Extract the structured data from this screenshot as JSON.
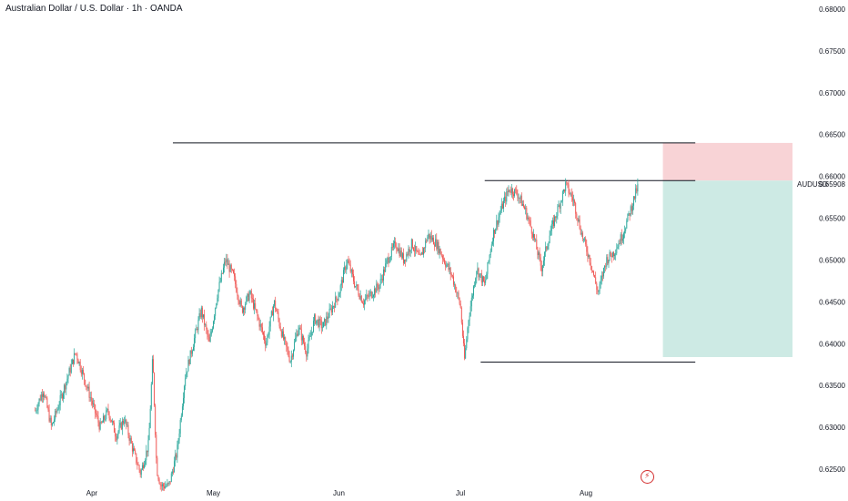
{
  "title": "Australian Dollar / U.S. Dollar · 1h · OANDA",
  "symbol_label": "AUDUSD",
  "event_icon": "lightning-icon",
  "colors": {
    "up": "#26a69a",
    "down": "#ef5350",
    "stop_zone": "#f8d3d6",
    "target_zone": "#cdeae4",
    "line": "#131722",
    "event": "#d32f2f"
  },
  "chart_data": {
    "type": "candlestick",
    "title": "Australian Dollar / U.S. Dollar · 1h · OANDA",
    "y_ticks": [
      "0.68000",
      "0.67500",
      "0.67000",
      "0.66500",
      "0.66000",
      "0.65500",
      "0.65000",
      "0.64500",
      "0.64000",
      "0.63500",
      "0.63000",
      "0.62500"
    ],
    "ylim": [
      0.6235,
      0.6805
    ],
    "x_ticks": [
      "Apr",
      "May",
      "Jun",
      "Jul",
      "Aug"
    ],
    "x_tick_dates": [
      "2024-04-01",
      "2024-05-01",
      "2024-06-01",
      "2024-07-01",
      "2024-08-01"
    ],
    "xlim": [
      "2024-03-18",
      "2024-08-28"
    ],
    "current_price": "0.65908",
    "price_path": [
      [
        "2024-03-18",
        0.632
      ],
      [
        "2024-03-20",
        0.6345
      ],
      [
        "2024-03-22",
        0.63
      ],
      [
        "2024-03-24",
        0.633
      ],
      [
        "2024-03-26",
        0.636
      ],
      [
        "2024-03-28",
        0.639
      ],
      [
        "2024-03-30",
        0.636
      ],
      [
        "2024-04-01",
        0.633
      ],
      [
        "2024-04-03",
        0.63
      ],
      [
        "2024-04-05",
        0.632
      ],
      [
        "2024-04-07",
        0.629
      ],
      [
        "2024-04-09",
        0.631
      ],
      [
        "2024-04-11",
        0.6275
      ],
      [
        "2024-04-13",
        0.6245
      ],
      [
        "2024-04-15",
        0.628
      ],
      [
        "2024-04-16",
        0.6385
      ],
      [
        "2024-04-17",
        0.625
      ],
      [
        "2024-04-18",
        0.623
      ],
      [
        "2024-04-20",
        0.623
      ],
      [
        "2024-04-22",
        0.627
      ],
      [
        "2024-04-24",
        0.636
      ],
      [
        "2024-04-26",
        0.64
      ],
      [
        "2024-04-28",
        0.644
      ],
      [
        "2024-04-30",
        0.64
      ],
      [
        "2024-05-02",
        0.646
      ],
      [
        "2024-05-04",
        0.65
      ],
      [
        "2024-05-06",
        0.648
      ],
      [
        "2024-05-08",
        0.644
      ],
      [
        "2024-05-10",
        0.646
      ],
      [
        "2024-05-12",
        0.643
      ],
      [
        "2024-05-14",
        0.64
      ],
      [
        "2024-05-16",
        0.645
      ],
      [
        "2024-05-18",
        0.641
      ],
      [
        "2024-05-20",
        0.638
      ],
      [
        "2024-05-22",
        0.642
      ],
      [
        "2024-05-24",
        0.639
      ],
      [
        "2024-05-26",
        0.643
      ],
      [
        "2024-05-28",
        0.642
      ],
      [
        "2024-05-30",
        0.644
      ],
      [
        "2024-06-01",
        0.646
      ],
      [
        "2024-06-03",
        0.65
      ],
      [
        "2024-06-05",
        0.647
      ],
      [
        "2024-06-07",
        0.645
      ],
      [
        "2024-06-09",
        0.646
      ],
      [
        "2024-06-11",
        0.647
      ],
      [
        "2024-06-13",
        0.65
      ],
      [
        "2024-06-15",
        0.652
      ],
      [
        "2024-06-17",
        0.65
      ],
      [
        "2024-06-19",
        0.652
      ],
      [
        "2024-06-21",
        0.65
      ],
      [
        "2024-06-23",
        0.653
      ],
      [
        "2024-06-25",
        0.652
      ],
      [
        "2024-06-27",
        0.65
      ],
      [
        "2024-06-29",
        0.648
      ],
      [
        "2024-07-01",
        0.6445
      ],
      [
        "2024-07-02",
        0.638
      ],
      [
        "2024-07-03",
        0.643
      ],
      [
        "2024-07-05",
        0.649
      ],
      [
        "2024-07-07",
        0.647
      ],
      [
        "2024-07-09",
        0.653
      ],
      [
        "2024-07-11",
        0.656
      ],
      [
        "2024-07-13",
        0.6585
      ],
      [
        "2024-07-15",
        0.658
      ],
      [
        "2024-07-17",
        0.656
      ],
      [
        "2024-07-19",
        0.653
      ],
      [
        "2024-07-21",
        0.649
      ],
      [
        "2024-07-23",
        0.653
      ],
      [
        "2024-07-25",
        0.656
      ],
      [
        "2024-07-27",
        0.659
      ],
      [
        "2024-07-29",
        0.657
      ],
      [
        "2024-07-31",
        0.653
      ],
      [
        "2024-08-02",
        0.65
      ],
      [
        "2024-08-04",
        0.646
      ],
      [
        "2024-08-06",
        0.65
      ],
      [
        "2024-08-08",
        0.651
      ],
      [
        "2024-08-10",
        0.653
      ],
      [
        "2024-08-12",
        0.656
      ],
      [
        "2024-08-14",
        0.6591
      ]
    ],
    "horizontal_lines": [
      {
        "price": 0.664,
        "from": "2024-04-21",
        "to": "2024-08-28"
      },
      {
        "price": 0.6595,
        "from": "2024-07-07",
        "to": "2024-08-28"
      },
      {
        "price": 0.6378,
        "from": "2024-07-06",
        "to": "2024-08-28"
      }
    ],
    "position": {
      "type": "short",
      "entry": 0.6595,
      "stop": 0.664,
      "target": 0.6384,
      "from": "2024-08-20",
      "to": "2024-09-21"
    },
    "event_marker": {
      "date": "2024-08-16"
    }
  }
}
